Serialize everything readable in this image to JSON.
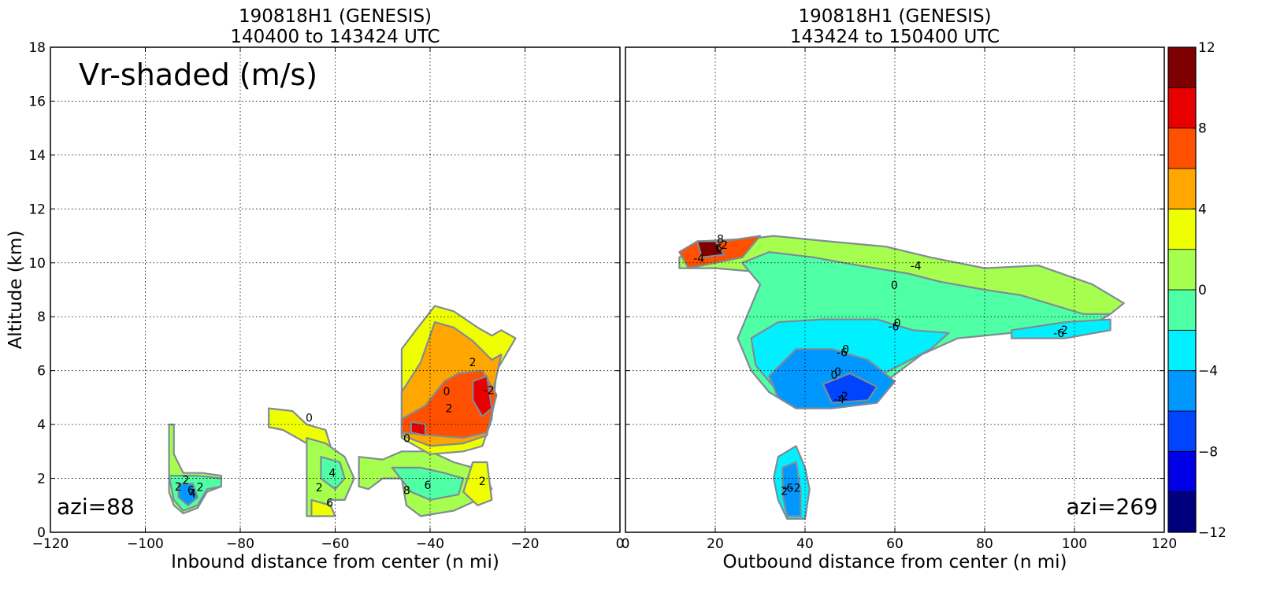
{
  "chart_data": [
    {
      "type": "heatmap",
      "title_line1": "190818H1 (GENESIS)",
      "title_line2": "140400 to 143424 UTC",
      "xlabel": "Inbound distance from center (n mi)",
      "ylabel": "Altitude (km)",
      "xlim": [
        -120,
        0
      ],
      "ylim": [
        0,
        18
      ],
      "xticks": [
        -120,
        -100,
        -80,
        -60,
        -40,
        -20,
        0
      ],
      "xtick_labels": [
        "−120",
        "−100",
        "−80",
        "−60",
        "−40",
        "−20",
        "0"
      ],
      "yticks": [
        0,
        2,
        4,
        6,
        8,
        10,
        12,
        14,
        16,
        18
      ],
      "ytick_labels": [
        "0",
        "2",
        "4",
        "6",
        "8",
        "10",
        "12",
        "14",
        "16",
        "18"
      ],
      "grid": true,
      "panel_label": "Vr-shaded (m/s)",
      "corner_label": "azi=88",
      "regions": [
        {
          "value": 0,
          "points": [
            [
              -95,
              4
            ],
            [
              -94,
              4
            ],
            [
              -94,
              2.9
            ],
            [
              -92,
              2.2
            ],
            [
              -88,
              2.2
            ],
            [
              -84,
              2.1
            ],
            [
              -84,
              1.7
            ],
            [
              -87,
              1.5
            ],
            [
              -89,
              0.9
            ],
            [
              -92,
              0.7
            ],
            [
              -94,
              1.0
            ],
            [
              -95,
              1.5
            ]
          ]
        },
        {
          "value": -2,
          "points": [
            [
              -95,
              2.1
            ],
            [
              -89,
              2.1
            ],
            [
              -84,
              2.0
            ],
            [
              -84,
              1.7
            ],
            [
              -87,
              1.6
            ],
            [
              -89,
              1.0
            ],
            [
              -92,
              0.8
            ],
            [
              -94,
              1.2
            ]
          ]
        },
        {
          "value": -6,
          "points": [
            [
              -93,
              1.8
            ],
            [
              -90,
              1.8
            ],
            [
              -89,
              1.3
            ],
            [
              -91,
              1.0
            ],
            [
              -93,
              1.3
            ]
          ]
        },
        {
          "value": 2,
          "points": [
            [
              -74,
              4.6
            ],
            [
              -69,
              4.5
            ],
            [
              -66,
              4.0
            ],
            [
              -62,
              3.8
            ],
            [
              -61,
              3.2
            ],
            [
              -66,
              3.3
            ],
            [
              -71,
              3.8
            ],
            [
              -74,
              3.9
            ]
          ]
        },
        {
          "value": 0,
          "points": [
            [
              -66,
              3.5
            ],
            [
              -62,
              3.3
            ],
            [
              -58,
              2.8
            ],
            [
              -56,
              2.0
            ],
            [
              -58,
              1.2
            ],
            [
              -61,
              1.2
            ],
            [
              -63,
              0.6
            ],
            [
              -66,
              0.6
            ],
            [
              -66,
              2.0
            ]
          ]
        },
        {
          "value": -2,
          "points": [
            [
              -63,
              2.8
            ],
            [
              -59,
              2.6
            ],
            [
              -58,
              2.0
            ],
            [
              -60,
              1.6
            ],
            [
              -63,
              2.0
            ]
          ]
        },
        {
          "value": 2,
          "points": [
            [
              -65,
              1.2
            ],
            [
              -61,
              1.0
            ],
            [
              -60,
              0.6
            ],
            [
              -65,
              0.6
            ]
          ]
        },
        {
          "value": 0,
          "points": [
            [
              -55,
              2.8
            ],
            [
              -50,
              2.7
            ],
            [
              -46,
              3.0
            ],
            [
              -40,
              3.0
            ],
            [
              -35,
              2.6
            ],
            [
              -29,
              2.3
            ],
            [
              -27,
              1.6
            ],
            [
              -30,
              1.2
            ],
            [
              -35,
              0.8
            ],
            [
              -42,
              0.6
            ],
            [
              -45,
              1.0
            ],
            [
              -46,
              2.0
            ],
            [
              -50,
              2.0
            ],
            [
              -53,
              1.6
            ],
            [
              -55,
              1.7
            ]
          ]
        },
        {
          "value": -2,
          "points": [
            [
              -48,
              2.4
            ],
            [
              -42,
              2.4
            ],
            [
              -37,
              2.2
            ],
            [
              -33,
              2.0
            ],
            [
              -34,
              1.4
            ],
            [
              -40,
              1.2
            ],
            [
              -44,
              1.5
            ]
          ]
        },
        {
          "value": 2,
          "points": [
            [
              -31,
              2.6
            ],
            [
              -28,
              2.6
            ],
            [
              -27,
              1.2
            ],
            [
              -30,
              1.0
            ],
            [
              -33,
              1.5
            ]
          ]
        },
        {
          "value": 2,
          "points": [
            [
              -46,
              6.8
            ],
            [
              -43,
              7.5
            ],
            [
              -39,
              8.4
            ],
            [
              -35,
              8.2
            ],
            [
              -30,
              7.6
            ],
            [
              -27,
              7.3
            ],
            [
              -25,
              7.5
            ],
            [
              -22,
              7.2
            ],
            [
              -26,
              6.0
            ],
            [
              -27,
              4.2
            ],
            [
              -29,
              3.2
            ],
            [
              -33,
              3.0
            ],
            [
              -40,
              2.9
            ],
            [
              -46,
              3.5
            ]
          ]
        },
        {
          "value": 4,
          "points": [
            [
              -46,
              5.2
            ],
            [
              -42,
              6.3
            ],
            [
              -39,
              7.8
            ],
            [
              -35,
              7.6
            ],
            [
              -31,
              7.1
            ],
            [
              -27,
              6.4
            ],
            [
              -25,
              6.6
            ],
            [
              -27,
              5.0
            ],
            [
              -28,
              3.6
            ],
            [
              -33,
              3.3
            ],
            [
              -40,
              3.2
            ],
            [
              -46,
              3.6
            ]
          ]
        },
        {
          "value": 6,
          "points": [
            [
              -46,
              4.2
            ],
            [
              -41,
              4.7
            ],
            [
              -37,
              5.6
            ],
            [
              -34,
              5.9
            ],
            [
              -29,
              6.0
            ],
            [
              -26,
              5.1
            ],
            [
              -28,
              3.7
            ],
            [
              -33,
              3.5
            ],
            [
              -40,
              3.6
            ],
            [
              -46,
              3.7
            ]
          ]
        },
        {
          "value": 8,
          "points": [
            [
              -31,
              5.6
            ],
            [
              -28,
              5.8
            ],
            [
              -27,
              4.6
            ],
            [
              -29,
              4.3
            ],
            [
              -31,
              4.9
            ]
          ]
        },
        {
          "value": 8,
          "points": [
            [
              -44,
              4.1
            ],
            [
              -41,
              4.0
            ],
            [
              -41,
              3.6
            ],
            [
              -44,
              3.7
            ]
          ]
        }
      ],
      "contour_labels": [
        "2",
        "4",
        "6",
        "0",
        "2",
        "4",
        "6",
        "8",
        "6",
        "2",
        "2",
        "0",
        "2",
        "-2",
        "0",
        "2",
        "2"
      ]
    },
    {
      "type": "heatmap",
      "title_line1": "190818H1 (GENESIS)",
      "title_line2": "143424 to 150400 UTC",
      "xlabel": "Outbound distance from center (n mi)",
      "ylabel": "",
      "xlim": [
        0,
        120
      ],
      "ylim": [
        0,
        18
      ],
      "xticks": [
        0,
        20,
        40,
        60,
        80,
        100,
        120
      ],
      "xtick_labels": [
        "0",
        "20",
        "40",
        "60",
        "80",
        "100",
        "120"
      ],
      "grid": true,
      "corner_label": "azi=269",
      "regions": [
        {
          "value": 0,
          "points": [
            [
              12,
              10.2
            ],
            [
              17,
              10.8
            ],
            [
              28,
              10.9
            ],
            [
              33,
              11.0
            ],
            [
              45,
              10.8
            ],
            [
              58,
              10.6
            ],
            [
              68,
              10.2
            ],
            [
              80,
              9.8
            ],
            [
              92,
              9.9
            ],
            [
              104,
              9.2
            ],
            [
              108,
              8.8
            ],
            [
              111,
              8.5
            ],
            [
              108,
              8.1
            ],
            [
              100,
              8.0
            ],
            [
              88,
              8.2
            ],
            [
              76,
              8.4
            ],
            [
              64,
              8.6
            ],
            [
              50,
              9.0
            ],
            [
              34,
              9.6
            ],
            [
              20,
              9.8
            ],
            [
              12,
              9.8
            ]
          ]
        },
        {
          "value": -2,
          "points": [
            [
              26,
              10.0
            ],
            [
              32,
              10.4
            ],
            [
              42,
              10.2
            ],
            [
              52,
              9.9
            ],
            [
              63,
              9.6
            ],
            [
              70,
              9.3
            ],
            [
              80,
              9.0
            ],
            [
              88,
              8.8
            ],
            [
              96,
              8.4
            ],
            [
              102,
              8.1
            ],
            [
              108,
              8.1
            ],
            [
              104,
              7.7
            ],
            [
              96,
              7.5
            ],
            [
              86,
              7.4
            ],
            [
              74,
              7.2
            ],
            [
              66,
              6.6
            ],
            [
              58,
              5.6
            ],
            [
              48,
              4.9
            ],
            [
              38,
              4.6
            ],
            [
              32,
              5.2
            ],
            [
              28,
              6.0
            ],
            [
              25,
              7.2
            ],
            [
              28,
              8.4
            ],
            [
              30,
              9.2
            ]
          ]
        },
        {
          "value": -4,
          "points": [
            [
              28,
              7.2
            ],
            [
              34,
              7.8
            ],
            [
              44,
              7.9
            ],
            [
              56,
              7.9
            ],
            [
              64,
              7.5
            ],
            [
              72,
              7.4
            ],
            [
              68,
              6.8
            ],
            [
              60,
              6.1
            ],
            [
              50,
              5.3
            ],
            [
              40,
              4.8
            ],
            [
              34,
              5.2
            ],
            [
              29,
              6.2
            ]
          ]
        },
        {
          "value": -6,
          "points": [
            [
              32,
              5.8
            ],
            [
              38,
              6.8
            ],
            [
              46,
              6.8
            ],
            [
              54,
              6.4
            ],
            [
              60,
              5.6
            ],
            [
              56,
              4.8
            ],
            [
              46,
              4.6
            ],
            [
              38,
              4.6
            ],
            [
              34,
              5.0
            ]
          ]
        },
        {
          "value": -8,
          "points": [
            [
              44,
              5.5
            ],
            [
              50,
              5.9
            ],
            [
              56,
              5.4
            ],
            [
              54,
              4.9
            ],
            [
              46,
              4.8
            ]
          ]
        },
        {
          "value": -4,
          "points": [
            [
              86,
              7.5
            ],
            [
              98,
              7.8
            ],
            [
              108,
              7.9
            ],
            [
              108,
              7.5
            ],
            [
              98,
              7.2
            ],
            [
              86,
              7.2
            ]
          ]
        },
        {
          "value": 6,
          "points": [
            [
              12,
              10.4
            ],
            [
              16,
              10.8
            ],
            [
              22,
              10.8
            ],
            [
              30,
              11.0
            ],
            [
              26,
              10.2
            ],
            [
              20,
              10.0
            ],
            [
              14,
              9.8
            ]
          ]
        },
        {
          "value": 10,
          "points": [
            [
              16,
              10.8
            ],
            [
              20,
              10.8
            ],
            [
              22,
              10.3
            ],
            [
              17,
              10.2
            ]
          ]
        },
        {
          "value": -4,
          "points": [
            [
              34,
              2.8
            ],
            [
              38,
              3.2
            ],
            [
              40,
              2.4
            ],
            [
              41,
              1.6
            ],
            [
              40,
              0.5
            ],
            [
              36,
              0.5
            ],
            [
              34,
              1.2
            ],
            [
              33,
              2.0
            ]
          ]
        },
        {
          "value": -6,
          "points": [
            [
              35,
              2.4
            ],
            [
              38,
              2.6
            ],
            [
              39,
              1.6
            ],
            [
              39,
              0.6
            ],
            [
              36,
              0.6
            ],
            [
              35,
              1.4
            ]
          ]
        }
      ],
      "contour_labels": [
        "0",
        "0",
        "0",
        "0",
        "-2",
        "-2",
        "-2",
        "-4",
        "-6",
        "-2",
        "-4",
        "-6",
        "-6",
        "0",
        "-4",
        "-6",
        "6",
        "8",
        "2"
      ]
    }
  ],
  "colorbar": {
    "boundaries": [
      -12,
      -10,
      -8,
      -6,
      -4,
      -2,
      0,
      2,
      4,
      6,
      8,
      10,
      12
    ],
    "colors": [
      "#00007f",
      "#0000e8",
      "#0044ff",
      "#0098ff",
      "#00f0ff",
      "#4fffa6",
      "#a6ff4f",
      "#f0ff00",
      "#ffa600",
      "#ff4f00",
      "#e80000",
      "#7f0000"
    ],
    "tick_values": [
      -12,
      -8,
      -4,
      0,
      4,
      8,
      12
    ],
    "tick_labels": [
      "−12",
      "−8",
      "−4",
      "0",
      "4",
      "8",
      "12"
    ]
  }
}
